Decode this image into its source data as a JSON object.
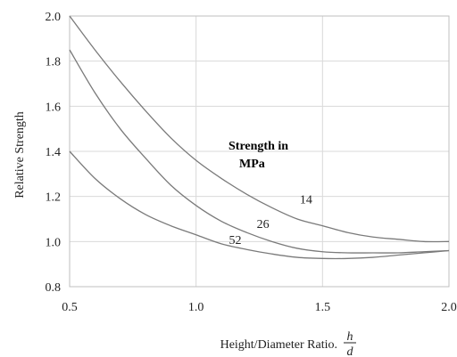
{
  "chart_data": {
    "type": "line",
    "title": "",
    "ylabel": "Relative Strength",
    "xlabel": "Height/Diameter Ratio.",
    "xlabel_fraction": {
      "numerator": "h",
      "denominator": "d"
    },
    "xlim": [
      0.5,
      2.0
    ],
    "ylim": [
      0.8,
      2.0
    ],
    "x_ticks": [
      "0.5",
      "1.0",
      "1.5",
      "2.0"
    ],
    "y_ticks": [
      "0.8",
      "1.0",
      "1.2",
      "1.4",
      "1.6",
      "1.8",
      "2.0"
    ],
    "grid": true,
    "legend_title_lines": [
      "Strength in",
      "MPa"
    ],
    "series": [
      {
        "name": "14",
        "x": [
          0.5,
          0.6,
          0.7,
          0.8,
          0.9,
          1.0,
          1.1,
          1.2,
          1.3,
          1.4,
          1.5,
          1.6,
          1.7,
          1.8,
          1.9,
          2.0
        ],
        "values": [
          2.0,
          1.85,
          1.71,
          1.58,
          1.46,
          1.36,
          1.28,
          1.21,
          1.15,
          1.1,
          1.07,
          1.04,
          1.02,
          1.01,
          1.0,
          1.0
        ]
      },
      {
        "name": "26",
        "x": [
          0.5,
          0.6,
          0.7,
          0.8,
          0.9,
          1.0,
          1.1,
          1.2,
          1.3,
          1.4,
          1.5,
          1.6,
          1.7,
          1.8,
          1.9,
          2.0
        ],
        "values": [
          1.85,
          1.66,
          1.5,
          1.37,
          1.25,
          1.16,
          1.09,
          1.04,
          1.0,
          0.97,
          0.955,
          0.95,
          0.95,
          0.95,
          0.955,
          0.96
        ]
      },
      {
        "name": "52",
        "x": [
          0.5,
          0.6,
          0.7,
          0.8,
          0.9,
          1.0,
          1.1,
          1.2,
          1.3,
          1.4,
          1.5,
          1.6,
          1.7,
          1.8,
          1.9,
          2.0
        ],
        "values": [
          1.4,
          1.28,
          1.19,
          1.12,
          1.07,
          1.03,
          0.99,
          0.965,
          0.945,
          0.93,
          0.925,
          0.925,
          0.93,
          0.94,
          0.95,
          0.96
        ]
      }
    ],
    "curve_labels": [
      {
        "text": "14",
        "x": 1.41,
        "y": 1.17
      },
      {
        "text": "26",
        "x": 1.24,
        "y": 1.06
      },
      {
        "text": "52",
        "x": 1.13,
        "y": 0.99
      }
    ],
    "colors": {
      "curve": "#7a7a7a",
      "grid": "#d9d9d9",
      "text": "#222222"
    }
  }
}
